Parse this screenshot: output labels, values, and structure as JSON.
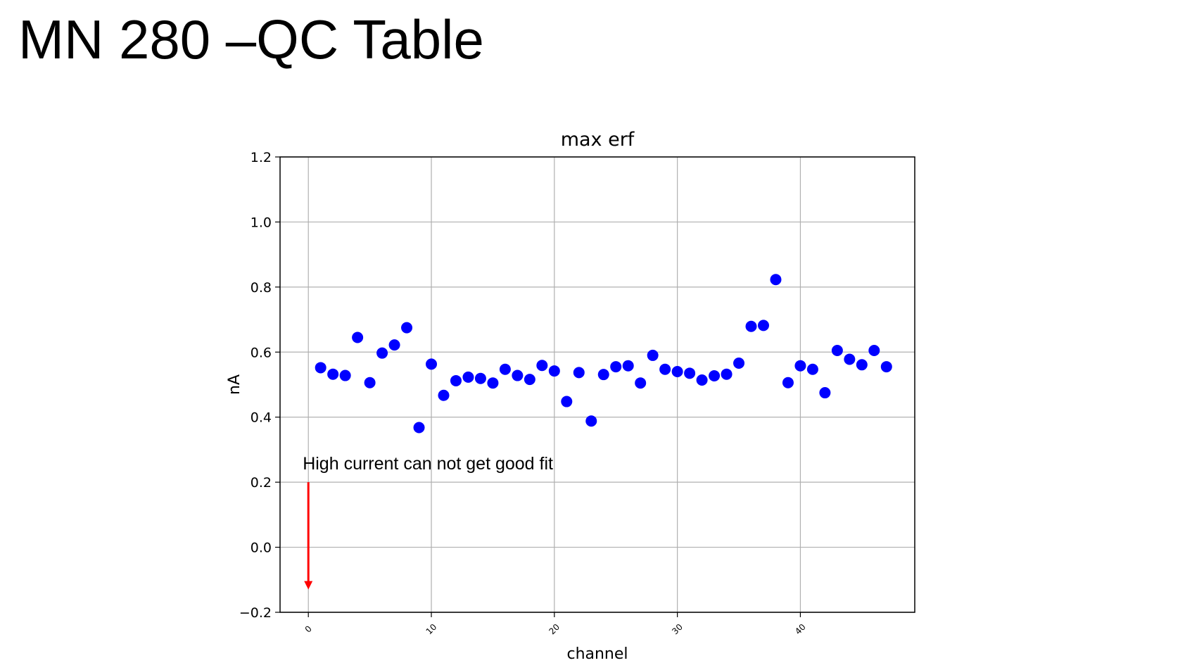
{
  "slide": {
    "title": "MN 280 –QC Table"
  },
  "chart_data": {
    "type": "scatter",
    "title": "max erf",
    "xlabel": "channel",
    "ylabel": "nA",
    "xlim": [
      -2.3,
      49.3
    ],
    "ylim": [
      -0.2,
      1.2
    ],
    "xticks": [
      0,
      10,
      20,
      30,
      40
    ],
    "yticks": [
      -0.2,
      0.0,
      0.2,
      0.4,
      0.6,
      0.8,
      1.0,
      1.2
    ],
    "ytick_labels": [
      "−0.2",
      "0.0",
      "0.2",
      "0.4",
      "0.6",
      "0.8",
      "1.0",
      "1.2"
    ],
    "grid": true,
    "marker_color": "#0000ff",
    "series": [
      {
        "x": [
          1,
          2,
          3,
          4,
          5,
          6,
          7,
          8,
          9,
          10,
          11,
          12,
          13,
          14,
          15,
          16,
          17,
          18,
          19,
          20,
          21,
          22,
          23,
          24,
          25,
          26,
          27,
          28,
          29,
          30,
          31,
          32,
          33,
          34,
          35,
          36,
          37,
          38,
          39,
          40,
          41,
          42,
          43,
          44,
          45,
          46,
          47
        ],
        "values": [
          0.552,
          0.532,
          0.528,
          0.645,
          0.506,
          0.597,
          0.622,
          0.675,
          0.368,
          0.563,
          0.467,
          0.512,
          0.523,
          0.519,
          0.505,
          0.547,
          0.528,
          0.516,
          0.559,
          0.542,
          0.448,
          0.537,
          0.388,
          0.531,
          0.555,
          0.558,
          0.505,
          0.59,
          0.547,
          0.54,
          0.535,
          0.514,
          0.527,
          0.532,
          0.566,
          0.679,
          0.682,
          0.823,
          0.506,
          0.558,
          0.547,
          0.475,
          0.605,
          0.578,
          0.561,
          0.605,
          0.555
        ]
      }
    ],
    "annotation": {
      "text": "High current can not get good fit",
      "arrow_color": "#ff0000",
      "arrow_x": 0,
      "arrow_from_y": 0.2,
      "arrow_to_y": -0.13
    }
  }
}
